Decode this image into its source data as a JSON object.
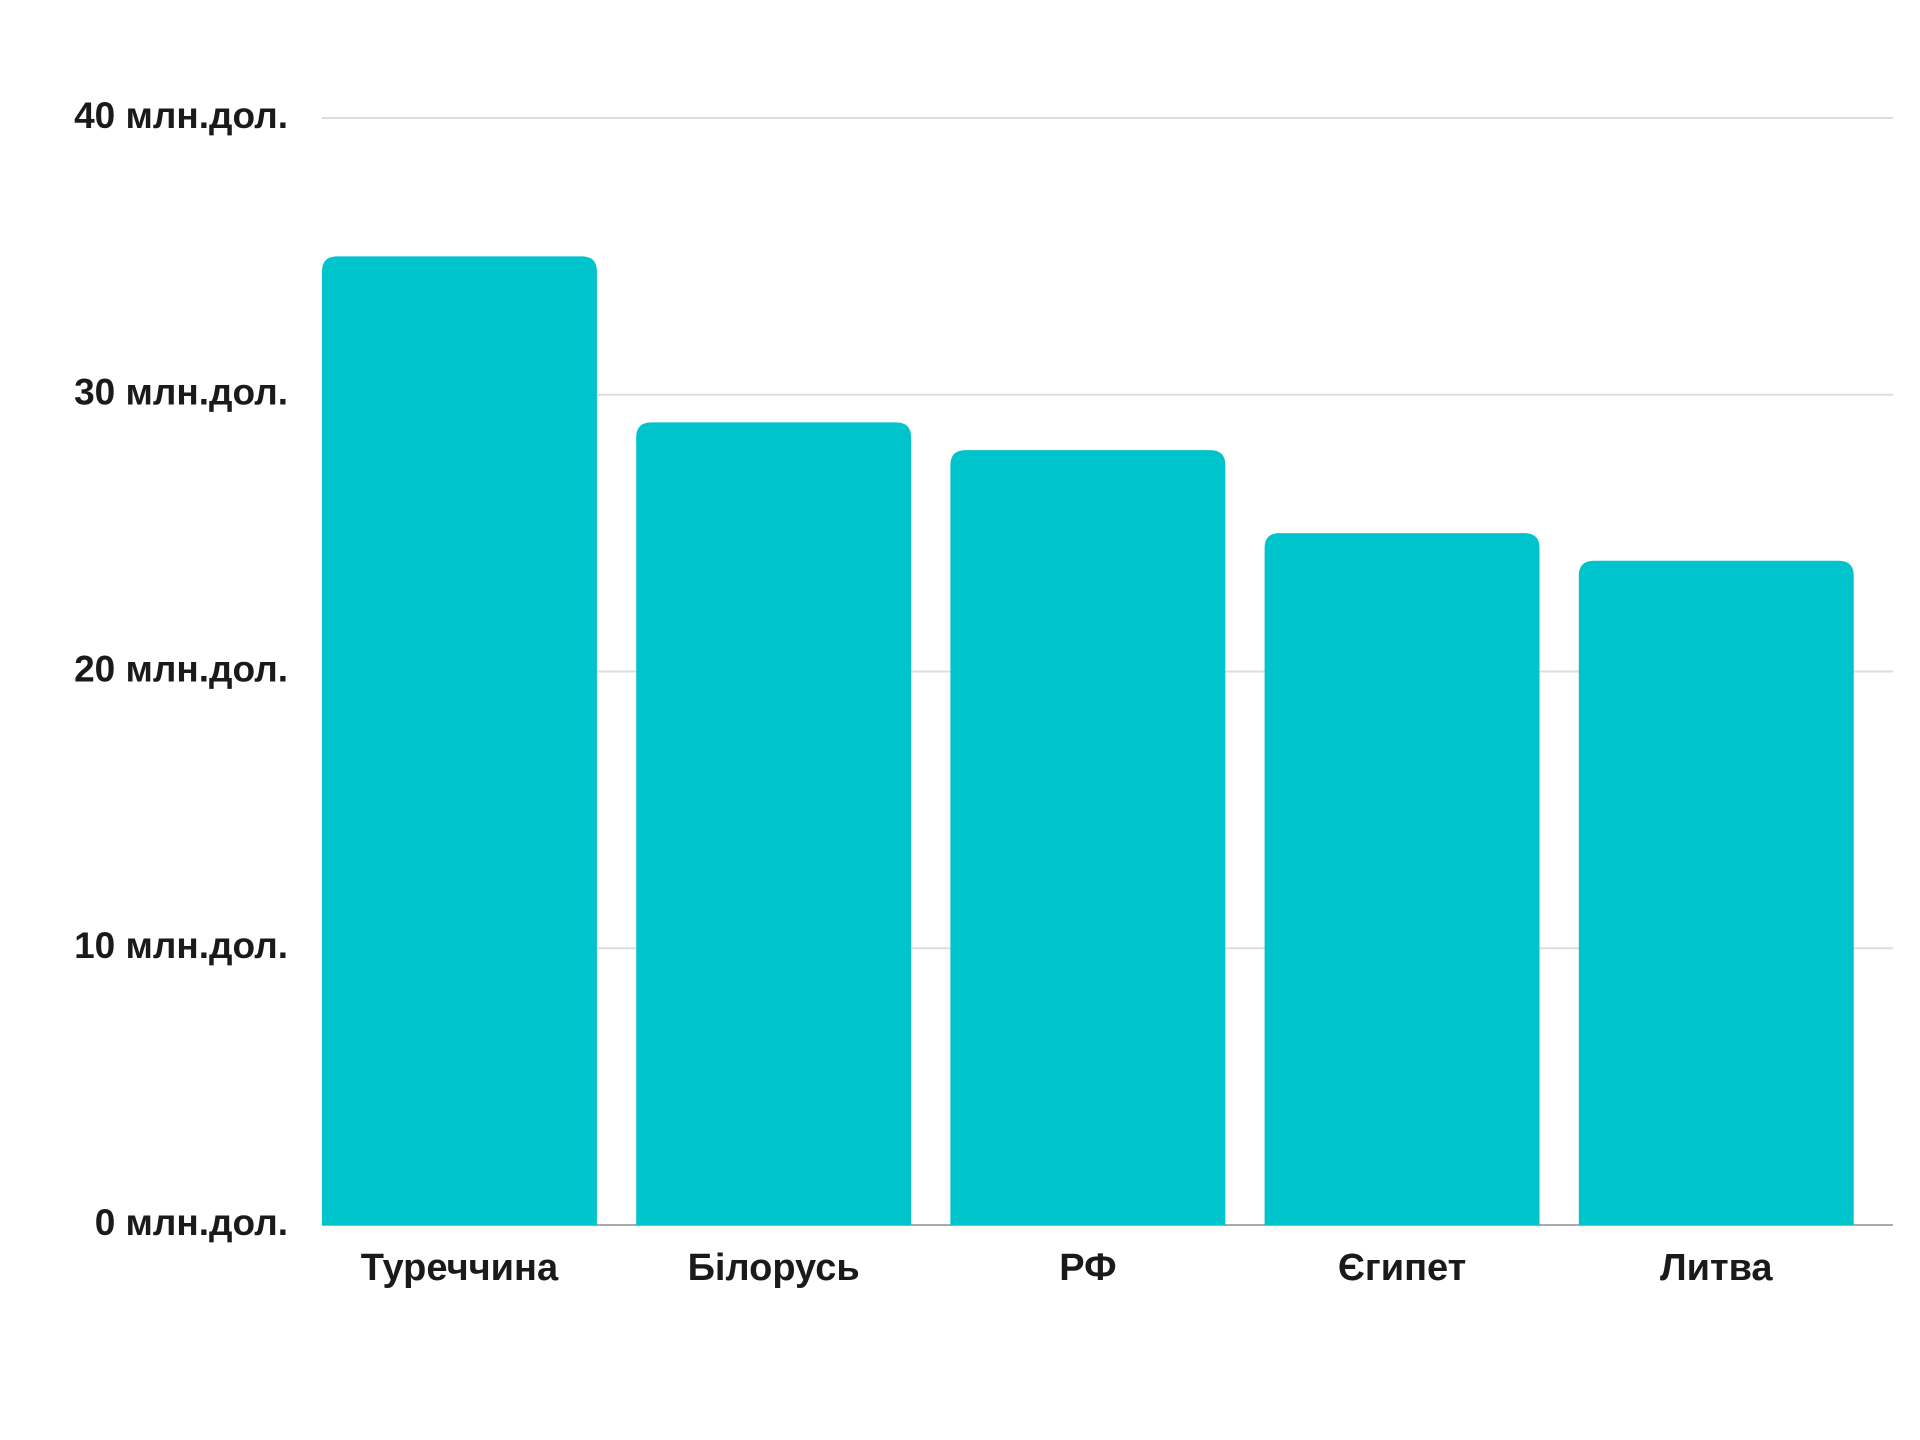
{
  "chart_data": {
    "type": "bar",
    "categories": [
      "Туреччина",
      "Білорусь",
      "РФ",
      "Єгипет",
      "Литва"
    ],
    "values": [
      35,
      29,
      28,
      25,
      24
    ],
    "color": "#00c4cc",
    "ylim": [
      0,
      40
    ],
    "yticks": [
      {
        "value": 0,
        "label": "0 млн.дол."
      },
      {
        "value": 10,
        "label": "10 млн.дол."
      },
      {
        "value": 20,
        "label": "20 млн.дол."
      },
      {
        "value": 30,
        "label": "30 млн.дол."
      },
      {
        "value": 40,
        "label": "40 млн.дол."
      }
    ],
    "grid": true
  }
}
